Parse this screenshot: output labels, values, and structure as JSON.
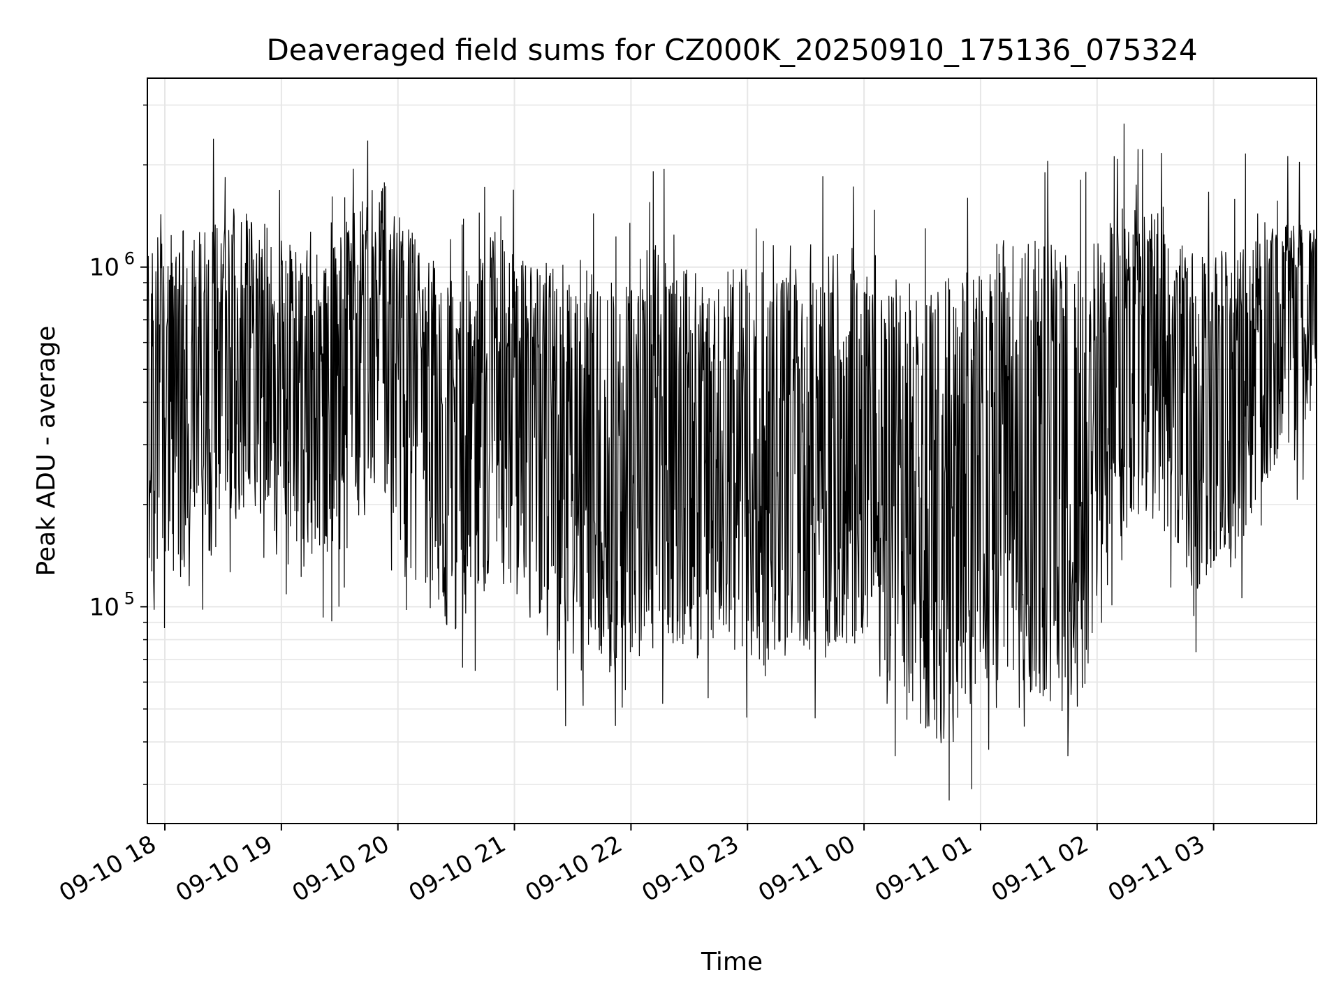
{
  "chart_data": {
    "type": "line",
    "title": "Deaveraged field sums for CZ000K_20250910_175136_075324",
    "xlabel": "Time",
    "ylabel": "Peak ADU - average",
    "yscale": "log",
    "ylim": [
      23000,
      3600000
    ],
    "xlim": [
      "2025-09-10 17:51",
      "2025-09-11 03:53"
    ],
    "grid": true,
    "line_color": "#000000",
    "x_ticks": [
      {
        "t": "2025-09-10 18:00",
        "label": "09-10 18"
      },
      {
        "t": "2025-09-10 19:00",
        "label": "09-10 19"
      },
      {
        "t": "2025-09-10 20:00",
        "label": "09-10 20"
      },
      {
        "t": "2025-09-10 21:00",
        "label": "09-10 21"
      },
      {
        "t": "2025-09-10 22:00",
        "label": "09-10 22"
      },
      {
        "t": "2025-09-10 23:00",
        "label": "09-10 23"
      },
      {
        "t": "2025-09-11 00:00",
        "label": "09-11 00"
      },
      {
        "t": "2025-09-11 01:00",
        "label": "09-11 01"
      },
      {
        "t": "2025-09-11 02:00",
        "label": "09-11 02"
      },
      {
        "t": "2025-09-11 03:00",
        "label": "09-11 03"
      }
    ],
    "y_ticks": [
      {
        "value": 100000,
        "base": "10",
        "exp": "5"
      },
      {
        "value": 1000000,
        "base": "10",
        "exp": "6"
      }
    ],
    "series": [
      {
        "x": [
          "2025-09-10 17:51",
          "2025-09-10 18:10",
          "2025-09-10 18:30",
          "2025-09-10 18:50",
          "2025-09-10 19:10",
          "2025-09-10 19:30",
          "2025-09-10 19:50",
          "2025-09-10 20:10",
          "2025-09-10 20:30",
          "2025-09-10 20:50",
          "2025-09-10 21:10",
          "2025-09-10 21:30",
          "2025-09-10 21:50",
          "2025-09-10 22:10",
          "2025-09-10 22:30",
          "2025-09-10 22:50",
          "2025-09-10 23:10",
          "2025-09-10 23:30",
          "2025-09-10 23:50",
          "2025-09-11 00:10",
          "2025-09-11 00:30",
          "2025-09-11 00:50",
          "2025-09-11 01:10",
          "2025-09-11 01:30",
          "2025-09-11 01:50",
          "2025-09-11 02:10",
          "2025-09-11 02:30",
          "2025-09-11 02:50",
          "2025-09-11 03:10",
          "2025-09-11 03:30",
          "2025-09-11 03:53"
        ],
        "y": [
          500000,
          450000,
          500000,
          520000,
          460000,
          550000,
          700000,
          500000,
          280000,
          450000,
          380000,
          300000,
          260000,
          350000,
          300000,
          320000,
          250000,
          280000,
          350000,
          260000,
          180000,
          140000,
          220000,
          200000,
          160000,
          600000,
          650000,
          400000,
          450000,
          750000,
          1050000
        ],
        "lo": [
          110000,
          120000,
          140000,
          180000,
          130000,
          140000,
          240000,
          110000,
          75000,
          120000,
          90000,
          65000,
          60000,
          75000,
          80000,
          80000,
          65000,
          70000,
          80000,
          60000,
          40000,
          40000,
          60000,
          55000,
          45000,
          150000,
          180000,
          110000,
          130000,
          250000,
          400000
        ],
        "hi": [
          1200000,
          1300000,
          1400000,
          1400000,
          1100000,
          1300000,
          1800000,
          1200000,
          900000,
          1300000,
          1000000,
          1100000,
          900000,
          1200000,
          1000000,
          1000000,
          1000000,
          1000000,
          1200000,
          1000000,
          800000,
          1100000,
          1200000,
          1300000,
          1000000,
          1500000,
          1500000,
          1100000,
          1200000,
          1400000,
          1300000
        ]
      }
    ]
  }
}
